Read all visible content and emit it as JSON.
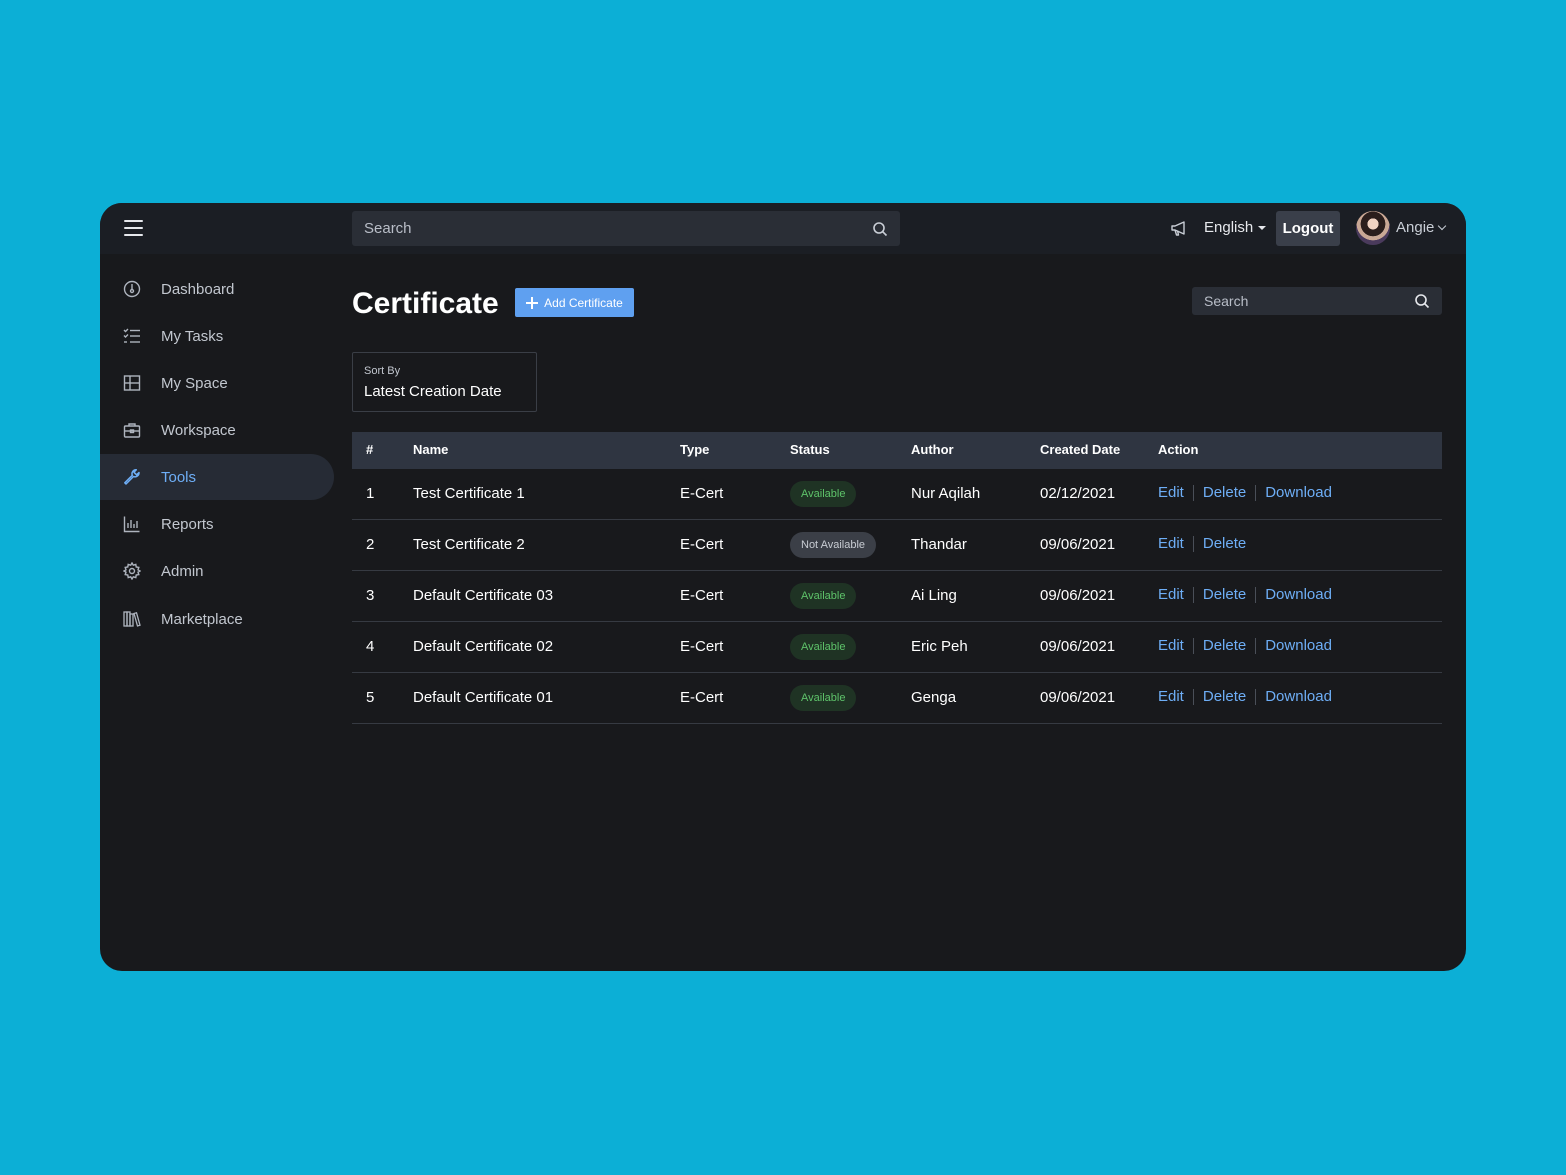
{
  "topbar": {
    "search_placeholder": "Search",
    "language": "English",
    "logout_label": "Logout",
    "user_name": "Angie"
  },
  "sidebar": {
    "items": [
      {
        "label": "Dashboard",
        "icon": "dashboard-gauge-icon"
      },
      {
        "label": "My Tasks",
        "icon": "task-list-icon"
      },
      {
        "label": "My Space",
        "icon": "grid-icon"
      },
      {
        "label": "Workspace",
        "icon": "briefcase-icon"
      },
      {
        "label": "Tools",
        "icon": "wrench-icon",
        "active": true
      },
      {
        "label": "Reports",
        "icon": "bar-chart-icon"
      },
      {
        "label": "Admin",
        "icon": "gear-icon"
      },
      {
        "label": "Marketplace",
        "icon": "library-icon"
      }
    ]
  },
  "main": {
    "title": "Certificate",
    "add_button_label": "Add Certificate",
    "search_placeholder": "Search",
    "sort": {
      "label": "Sort By",
      "value": "Latest Creation Date"
    }
  },
  "table": {
    "columns": [
      "#",
      "Name",
      "Type",
      "Status",
      "Author",
      "Created Date",
      "Action"
    ],
    "rows": [
      {
        "num": "1",
        "name": "Test Certificate 1",
        "type": "E-Cert",
        "status": "Available",
        "author": "Nur Aqilah",
        "date": "02/12/2021",
        "edit": "Edit",
        "delete": "Delete",
        "download": "Download"
      },
      {
        "num": "2",
        "name": "Test Certificate 2",
        "type": "E-Cert",
        "status": "Not Available",
        "author": "Thandar",
        "date": "09/06/2021",
        "edit": "Edit",
        "delete": "Delete",
        "download": null
      },
      {
        "num": "3",
        "name": "Default Certificate 03",
        "type": "E-Cert",
        "status": "Available",
        "author": "Ai Ling",
        "date": "09/06/2021",
        "edit": "Edit",
        "delete": "Delete",
        "download": "Download"
      },
      {
        "num": "4",
        "name": "Default Certificate 02",
        "type": "E-Cert",
        "status": "Available",
        "author": "Eric Peh",
        "date": "09/06/2021",
        "edit": "Edit",
        "delete": "Delete",
        "download": "Download"
      },
      {
        "num": "5",
        "name": "Default Certificate 01",
        "type": "E-Cert",
        "status": "Available",
        "author": "Genga",
        "date": "09/06/2021",
        "edit": "Edit",
        "delete": "Delete",
        "download": "Download"
      }
    ]
  },
  "colors": {
    "background": "#0cafd6",
    "app_bg": "#18191c",
    "accent": "#6eaef6",
    "available": "#5ec36a"
  }
}
